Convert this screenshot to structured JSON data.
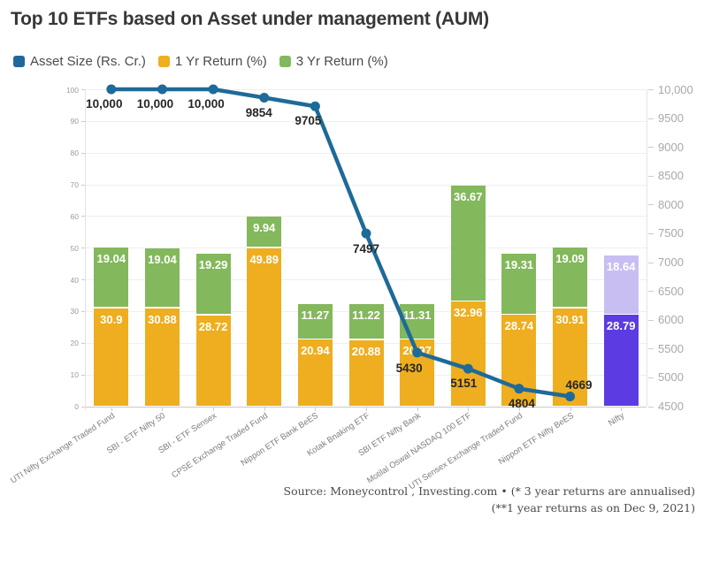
{
  "chart_data": {
    "type": "combo-stacked-bar-line",
    "title": "Top 10 ETFs based on Asset under management (AUM)",
    "legend": [
      {
        "label": "Asset Size (Rs. Cr.)",
        "color": "#20689B"
      },
      {
        "label": "1 Yr Return (%)",
        "color": "#EEAE1F"
      },
      {
        "label": "3 Yr Return (%)",
        "color": "#83B85C"
      }
    ],
    "categories": [
      "UTI Nifty Exchange Traded Fund",
      "SBI - ETF Nifty 50",
      "SBI - ETF Sensex",
      "CPSE Exchange Traded Fund",
      "Nippon ETF Bank BeES",
      "Kotak Bnaking ETF",
      "SBI ETF Nifty Bank",
      "Motilal Oswal NASDAQ 100 ETF",
      "UTI Sensex Exchange Traded Fund",
      "Nippon ETF Nifty BeES",
      "Nifty"
    ],
    "series": [
      {
        "name": "1 Yr Return (%)",
        "type": "bar",
        "axis": "left",
        "values": [
          30.9,
          30.88,
          28.72,
          49.89,
          20.94,
          20.88,
          20.97,
          32.96,
          28.74,
          30.91,
          28.79
        ]
      },
      {
        "name": "3 Yr Return (%)",
        "type": "bar",
        "axis": "left",
        "values": [
          19.04,
          19.04,
          19.29,
          9.94,
          11.27,
          11.22,
          11.31,
          36.67,
          19.31,
          19.09,
          18.64
        ]
      },
      {
        "name": "Asset Size (Rs. Cr.)",
        "type": "line",
        "axis": "right",
        "values": [
          10000,
          10000,
          10000,
          9854,
          9705,
          7497,
          5430,
          5151,
          4804,
          4669,
          null
        ],
        "labels": [
          "10,000",
          "10,000",
          "10,000",
          "9854",
          "9705",
          "7497",
          "5430",
          "5151",
          "4804",
          "4669",
          null
        ]
      }
    ],
    "left_axis": {
      "min": 0,
      "max": 100,
      "tick_values": [
        0,
        10,
        20,
        30,
        40,
        50,
        60,
        70,
        80,
        90,
        100
      ],
      "tick_labels": [
        "0",
        "10",
        "20",
        "30",
        "40",
        "50",
        "60",
        "70",
        "80",
        "90",
        "100"
      ]
    },
    "right_axis": {
      "min": 4500,
      "max": 10000,
      "tick_values": [
        4500,
        5000,
        5500,
        6000,
        6500,
        7000,
        7500,
        8000,
        8500,
        9000,
        9500,
        10000
      ],
      "tick_labels": [
        "4500",
        "5000",
        "5500",
        "6000",
        "6500",
        "7000",
        "7500",
        "8000",
        "8500",
        "9000",
        "9500",
        "10,000"
      ]
    },
    "colors": {
      "bar_low_default": "#EEAE1F",
      "bar_high_default": "#83B85C",
      "bar_low_highlight": "#5C3CE2",
      "bar_high_highlight": "#C8BEF2",
      "line": "#1E6A99",
      "highlight_category": "Nifty"
    },
    "grid": true,
    "legend_position": "top-left",
    "source_lines": [
      "Source: Moneycontrol , Investing.com • (* 3 year returns are annualised)",
      "(**1 year returns as on Dec 9, 2021)"
    ]
  }
}
